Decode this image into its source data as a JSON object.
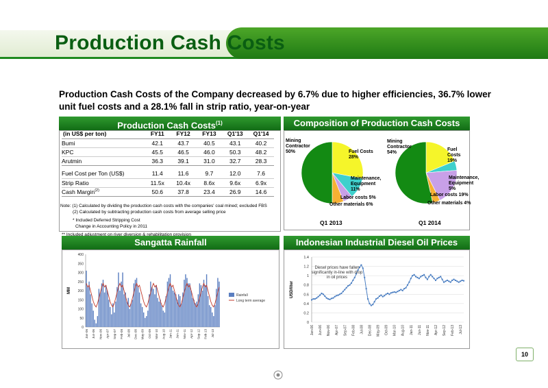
{
  "page": {
    "title": "Production Cash Costs",
    "page_number": "10"
  },
  "headline": "Production Cash Costs of the Company decreased by 6.7% due to higher efficiencies, 36.7% lower unit fuel costs and a 28.1% fall in strip ratio, year-on-year",
  "colors": {
    "dark_green": "#126c15",
    "green": "#2f9a2f",
    "title_green": "#0a5e12",
    "diesel_blue": "#4a7ec2",
    "rain_bar": "#5b7fc1",
    "rain_line": "#c0392b"
  },
  "cost_panel": {
    "title": "Production Cash Costs",
    "title_sup": "(1)",
    "unit": "(in US$ per ton)",
    "columns": [
      "FY11",
      "FY12",
      "FY13",
      "Q1'13",
      "Q1'14"
    ],
    "rows": [
      {
        "label": "Bumi",
        "values": [
          "42.1",
          "43.7",
          "40.5",
          "43.1",
          "40.2"
        ]
      },
      {
        "label": "KPC",
        "values": [
          "45.5",
          "46.5",
          "46.0",
          "50.3",
          "48.2"
        ]
      },
      {
        "label": "Arutmin",
        "values": [
          "36.3",
          "39.1",
          "31.0",
          "32.7",
          "28.3"
        ]
      }
    ],
    "rows2": [
      {
        "label": "Fuel Cost  per Ton (US$)",
        "values": [
          "11.4",
          "11.6",
          "9.7",
          "12.0",
          "7.6"
        ]
      },
      {
        "label": "Strip Ratio",
        "values": [
          "11.5x",
          "10.4x",
          "8.6x",
          "9.6x",
          "6.9x"
        ]
      },
      {
        "label": "Cash Margin",
        "label_sup": "(2)",
        "values": [
          "50.6",
          "37.8",
          "23.4",
          "26.9",
          "14.6"
        ]
      }
    ],
    "note1": "Note: (1) Calculated by dividing the production cash costs with the companies' coal mined; excluded FBS",
    "note2": "(2) Calculated by subtracting production cash costs from average selling price",
    "note3": "* Included Deferred Stripping Cost",
    "note4": "Change in Accounting Policy in 2011",
    "note5": "** Included adjustment on river diversion & rehabilitation provision"
  },
  "composition_panel": {
    "title": "Composition of Production Cash Costs",
    "q1_2013": {
      "label": "Q1 2013",
      "slice_labels": {
        "mining": "Mining Contractor 50%",
        "fuel": "Fuel Costs 28%",
        "maint": "Maintenance, Equipment 11%",
        "labor": "Labor costs 5%",
        "other": "Other materials 6%"
      }
    },
    "q1_2014": {
      "label": "Q1 2014",
      "slice_labels": {
        "mining": "Mining Contractor 54%",
        "fuel": "Fuel Costs 19%",
        "maint": "Maintenance, Equipment 5%",
        "labor": "Labor costs 19%",
        "other": "Other materials 4%"
      }
    }
  },
  "rain_panel": {
    "title": "Sangatta Rainfall",
    "ylabel": "MM",
    "legend_bar": "Rainfall",
    "legend_line": "Long term average",
    "yticks": [
      "0",
      "50",
      "100",
      "150",
      "200",
      "250",
      "300",
      "350",
      "400"
    ],
    "xticks": [
      "Jan-06",
      "Jun-06",
      "Nov-06",
      "Apr-07",
      "Sep-07",
      "Feb-08",
      "Jul-08",
      "Dec-08",
      "May-09",
      "Oct-09",
      "Mar-10",
      "Aug-10",
      "Jan-11",
      "Jun-11",
      "Nov-11",
      "Apr-12",
      "Sep-12",
      "Feb-13",
      "Jul-13"
    ]
  },
  "diesel_panel": {
    "title": "Indonesian Industrial Diesel Oil Prices",
    "ylabel": "USD/liter",
    "annotation": "Diesel prices have fallen significantly in-line with drop in oil prices",
    "yticks": [
      "0",
      "0.2",
      "0.4",
      "0.6",
      "0.8",
      "1",
      "1.2",
      "1.4"
    ],
    "xticks": [
      "Jan-06",
      "Jun-06",
      "Nov-06",
      "Apr-07",
      "Sep-07",
      "Feb-08",
      "Jul-08",
      "Dec-08",
      "May-09",
      "Oct-09",
      "Mar-10",
      "Aug-10",
      "Jan-11",
      "Jun-11",
      "Nov-11",
      "Apr-12",
      "Sep-12",
      "Feb-13",
      "Jul-13"
    ]
  },
  "chart_data": [
    {
      "type": "pie",
      "title": "Q1 2013",
      "categories": [
        "Mining Contractor",
        "Fuel Costs",
        "Maintenance, Equipment",
        "Labor costs",
        "Other materials"
      ],
      "values": [
        50,
        28,
        11,
        5,
        6
      ],
      "colors": [
        "#138a13",
        "#f5f52a",
        "#3fd0cc",
        "#c8a0e8",
        "#f6b133"
      ]
    },
    {
      "type": "pie",
      "title": "Q1 2014",
      "categories": [
        "Mining Contractor",
        "Fuel Costs",
        "Maintenance, Equipment",
        "Labor costs",
        "Other materials"
      ],
      "values": [
        54,
        19,
        5,
        19,
        4
      ],
      "colors": [
        "#138a13",
        "#f5f52a",
        "#3fd0cc",
        "#c8a0e8",
        "#f6b133"
      ]
    },
    {
      "type": "bar",
      "title": "Sangatta Rainfall",
      "ylabel": "MM",
      "ylim": [
        0,
        400
      ],
      "x_start": "Jan-06",
      "x_end": "Jan-14",
      "series": [
        {
          "name": "Rainfall",
          "type": "bar",
          "values": [
            310,
            220,
            250,
            180,
            130,
            90,
            40,
            20,
            60,
            210,
            190,
            240,
            260,
            190,
            230,
            200,
            150,
            110,
            70,
            130,
            80,
            140,
            220,
            300,
            200,
            250,
            300,
            180,
            190,
            140,
            160,
            100,
            130,
            150,
            240,
            260,
            270,
            220,
            190,
            130,
            110,
            80,
            50,
            60,
            90,
            180,
            250,
            220,
            210,
            180,
            230,
            160,
            140,
            150,
            120,
            90,
            80,
            170,
            250,
            270,
            290,
            220,
            200,
            190,
            180,
            150,
            180,
            170,
            130,
            190,
            260,
            290,
            270,
            240,
            240,
            200,
            160,
            150,
            130,
            140,
            180,
            240,
            230,
            200,
            260,
            230,
            290,
            170,
            120,
            110,
            80,
            60,
            120,
            210,
            270,
            250
          ]
        },
        {
          "name": "Long term average",
          "type": "line",
          "values": [
            240,
            220,
            230,
            200,
            170,
            140,
            120,
            110,
            130,
            160,
            190,
            220
          ]
        }
      ]
    },
    {
      "type": "line",
      "title": "Indonesian Industrial Diesel Oil Prices",
      "ylabel": "USD/liter",
      "ylim": [
        0,
        1.4
      ],
      "x_start": "Jan-06",
      "x_end": "Oct-13",
      "series": [
        {
          "name": "Diesel price",
          "values": [
            0.48,
            0.5,
            0.5,
            0.52,
            0.55,
            0.58,
            0.62,
            0.6,
            0.56,
            0.52,
            0.5,
            0.49,
            0.51,
            0.52,
            0.55,
            0.57,
            0.58,
            0.6,
            0.62,
            0.66,
            0.7,
            0.74,
            0.78,
            0.8,
            0.84,
            0.9,
            0.96,
            1.04,
            1.12,
            1.18,
            1.23,
            1.16,
            0.96,
            0.72,
            0.5,
            0.4,
            0.36,
            0.38,
            0.44,
            0.5,
            0.52,
            0.56,
            0.58,
            0.55,
            0.57,
            0.6,
            0.62,
            0.6,
            0.63,
            0.64,
            0.65,
            0.64,
            0.66,
            0.68,
            0.7,
            0.68,
            0.72,
            0.74,
            0.8,
            0.86,
            0.94,
            1.0,
            1.02,
            0.98,
            0.96,
            0.94,
            0.98,
            1.0,
            1.02,
            0.96,
            0.92,
            0.98,
            1.02,
            0.98,
            0.94,
            0.9,
            0.94,
            0.96,
            0.98,
            0.92,
            0.86,
            0.88,
            0.9,
            0.88,
            0.86,
            0.9,
            0.92,
            0.9,
            0.88,
            0.86,
            0.88,
            0.9,
            0.89
          ]
        }
      ]
    }
  ]
}
